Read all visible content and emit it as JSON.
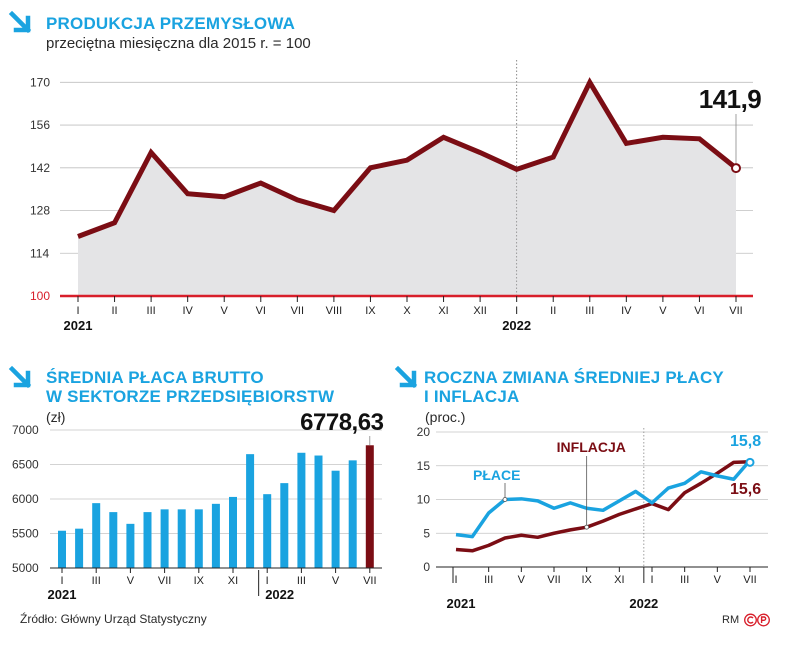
{
  "top": {
    "title": "PRODUKCJA PRZEMYSŁOWA",
    "subtitle": "przeciętna miesięczna dla 2015 r. = 100",
    "callout": "141,9"
  },
  "wages": {
    "title_line1": "ŚREDNIA PŁACA BRUTTO",
    "title_line2": "W SEKTORZE PRZEDSIĘBIORSTW",
    "unit": "(zł)",
    "callout": "6778,63"
  },
  "change": {
    "title_line1": "ROCZNA ZMIANA ŚREDNIEJ PŁACY",
    "title_line2": "I INFLACJA",
    "unit": "(proc.)",
    "label_wages": "PŁACE",
    "label_inflation": "INFLACJA",
    "callout_wages": "15,8",
    "callout_inflation": "15,6"
  },
  "footer": {
    "source": "Źródło: Główny Urząd Statystyczny",
    "credit": "RM"
  },
  "colors": {
    "accent_blue": "#1aa3e0",
    "production_line": "#7b0d14",
    "wage_bars": "#1aa3e0",
    "highlight_bar": "#7b0d14",
    "baseline_red": "#d81e2a",
    "area_fill": "#e4e4e6"
  },
  "icons": [
    "arrow-down-right-icon",
    "copyright-c-icon",
    "copyright-p-icon"
  ],
  "chart_data": [
    {
      "type": "area",
      "title": "PRODUKCJA PRZEMYSŁOWA",
      "subtitle": "przeciętna miesięczna dla 2015 r. = 100",
      "categories": [
        "I",
        "II",
        "III",
        "IV",
        "V",
        "VI",
        "VII",
        "VIII",
        "IX",
        "X",
        "XI",
        "XII",
        "I",
        "II",
        "III",
        "IV",
        "V",
        "VI",
        "VII"
      ],
      "year_labels": [
        "2021",
        "2022"
      ],
      "series": [
        {
          "values": [
            119.5,
            124,
            147,
            133.5,
            132.5,
            137,
            131.5,
            128,
            142,
            144.5,
            152,
            147,
            141.5,
            145.5,
            170,
            150,
            152,
            151.5,
            141.9
          ]
        }
      ],
      "yticks": [
        100,
        114,
        128,
        142,
        156,
        170
      ],
      "ylim": [
        100,
        176
      ],
      "grid": true,
      "baseline": 100,
      "annotation": "141,9"
    },
    {
      "type": "bar",
      "title": "ŚREDNIA PŁACA BRUTTO W SEKTORZE PRZEDSIĘBIORSTW",
      "ylabel": "(zł)",
      "categories": [
        "I",
        "II",
        "III",
        "IV",
        "V",
        "VI",
        "VII",
        "VIII",
        "IX",
        "X",
        "XI",
        "XII",
        "I",
        "II",
        "III",
        "IV",
        "V",
        "VI",
        "VII"
      ],
      "tick_labels": [
        "I",
        "III",
        "V",
        "VII",
        "IX",
        "XI",
        "I",
        "III",
        "V",
        "VII"
      ],
      "year_labels": [
        "2021",
        "2022"
      ],
      "values": [
        5540,
        5570,
        5940,
        5810,
        5640,
        5810,
        5850,
        5850,
        5850,
        5930,
        6030,
        6650,
        6070,
        6230,
        6670,
        6630,
        6410,
        6560,
        6778.63
      ],
      "yticks": [
        5000,
        5500,
        6000,
        6500,
        7000
      ],
      "ylim": [
        5000,
        7000
      ],
      "grid": true,
      "annotation": "6778,63"
    },
    {
      "type": "line",
      "title": "ROCZNA ZMIANA ŚREDNIEJ PŁACY I INFLACJA",
      "ylabel": "(proc.)",
      "categories": [
        "I",
        "II",
        "III",
        "IV",
        "V",
        "VI",
        "VII",
        "VIII",
        "IX",
        "X",
        "XI",
        "XII",
        "I",
        "II",
        "III",
        "IV",
        "V",
        "VI",
        "VII"
      ],
      "tick_labels": [
        "I",
        "III",
        "V",
        "VII",
        "IX",
        "XI",
        "I",
        "III",
        "V",
        "VII"
      ],
      "year_labels": [
        "2021",
        "2022"
      ],
      "series": [
        {
          "name": "PŁACE",
          "values": [
            4.8,
            4.5,
            8.0,
            10.0,
            10.1,
            9.8,
            8.7,
            9.5,
            8.7,
            8.4,
            9.8,
            11.2,
            9.5,
            11.7,
            12.4,
            14.1,
            13.5,
            13.0,
            15.8
          ]
        },
        {
          "name": "INFLACJA",
          "values": [
            2.6,
            2.4,
            3.2,
            4.3,
            4.7,
            4.4,
            5.0,
            5.5,
            5.9,
            6.8,
            7.8,
            8.6,
            9.4,
            8.5,
            11.0,
            12.4,
            13.9,
            15.5,
            15.6
          ]
        }
      ],
      "yticks": [
        0,
        5,
        10,
        15,
        20
      ],
      "ylim": [
        0,
        20
      ],
      "grid": true,
      "annotations": [
        "15,8",
        "15,6"
      ]
    }
  ]
}
